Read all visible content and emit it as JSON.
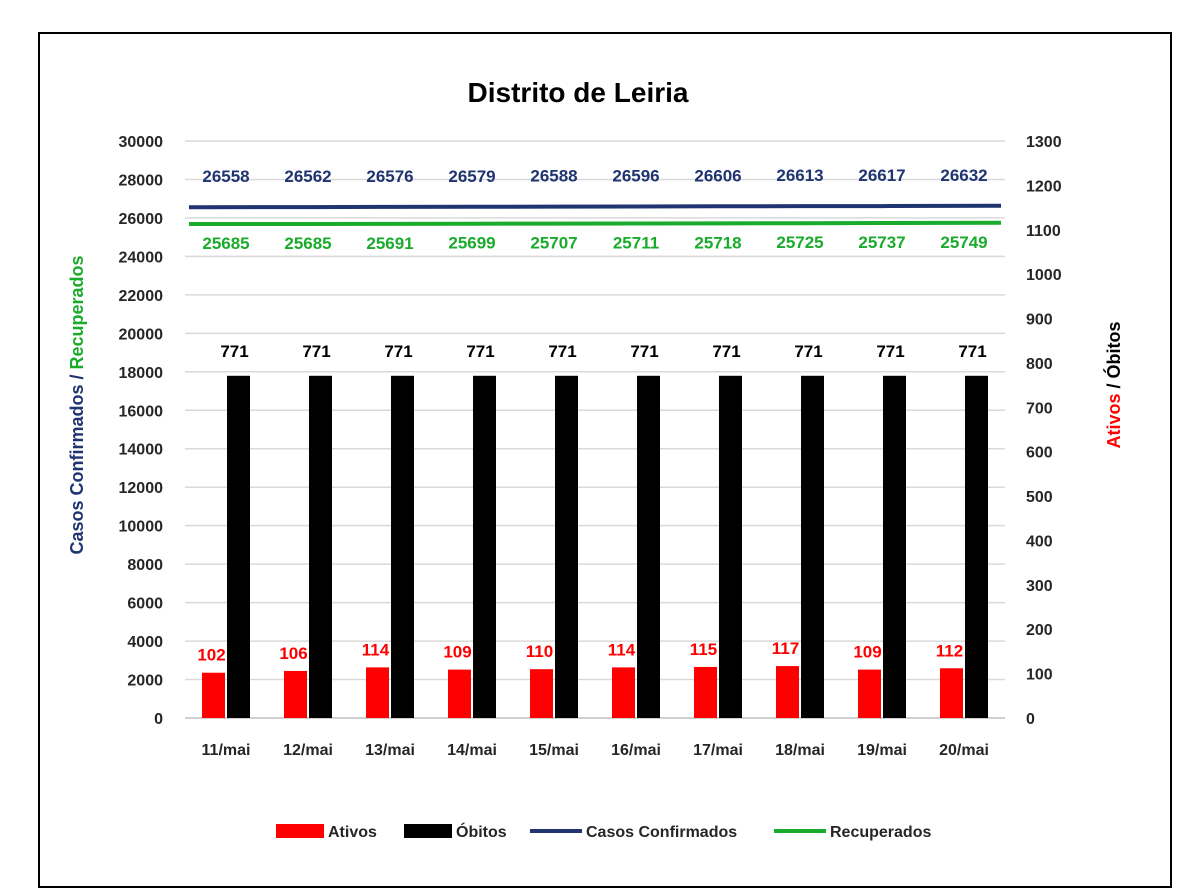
{
  "chart_data": {
    "type": "bar",
    "title": "Distrito de Leiria",
    "categories": [
      "11/mai",
      "12/mai",
      "13/mai",
      "14/mai",
      "15/mai",
      "16/mai",
      "17/mai",
      "18/mai",
      "19/mai",
      "20/mai"
    ],
    "ylabel_left": {
      "part1": "Casos Confirmados",
      "separator": " / ",
      "part2": "Recuperados"
    },
    "ylabel_right": {
      "part1": "Ativos",
      "separator": " / ",
      "part2": "Óbitos"
    },
    "ylim_left": [
      0,
      30000
    ],
    "ylim_right": [
      0,
      1300
    ],
    "yticks_left": [
      0,
      2000,
      4000,
      6000,
      8000,
      10000,
      12000,
      14000,
      16000,
      18000,
      20000,
      22000,
      24000,
      26000,
      28000,
      30000
    ],
    "yticks_right": [
      0,
      100,
      200,
      300,
      400,
      500,
      600,
      700,
      800,
      900,
      1000,
      1100,
      1200,
      1300
    ],
    "grid": true,
    "legend_position": "bottom",
    "series": [
      {
        "name": "Ativos",
        "kind": "bar",
        "axis": "right",
        "color": "#ff0000",
        "label_color": "#ff0000",
        "values": [
          102,
          106,
          114,
          109,
          110,
          114,
          115,
          117,
          109,
          112
        ]
      },
      {
        "name": "Óbitos",
        "kind": "bar",
        "axis": "right",
        "color": "#000000",
        "label_color": "#000000",
        "values": [
          771,
          771,
          771,
          771,
          771,
          771,
          771,
          771,
          771,
          771
        ]
      },
      {
        "name": "Casos Confirmados",
        "kind": "line",
        "axis": "left",
        "color": "#1f3470",
        "label_color": "#1f3470",
        "values": [
          26558,
          26562,
          26576,
          26579,
          26588,
          26596,
          26606,
          26613,
          26617,
          26632
        ]
      },
      {
        "name": "Recuperados",
        "kind": "line",
        "axis": "left",
        "color": "#1aab2c",
        "label_color": "#1aab2c",
        "values": [
          25685,
          25685,
          25691,
          25699,
          25707,
          25711,
          25718,
          25725,
          25737,
          25749
        ]
      }
    ]
  },
  "colors": {
    "left_axis_part1": "#1f3470",
    "left_axis_part2": "#1aab2c",
    "right_axis_part1": "#ff0000",
    "right_axis_part2": "#000000",
    "grid": "#d9d9d9",
    "axis": "#bfbfbf"
  }
}
